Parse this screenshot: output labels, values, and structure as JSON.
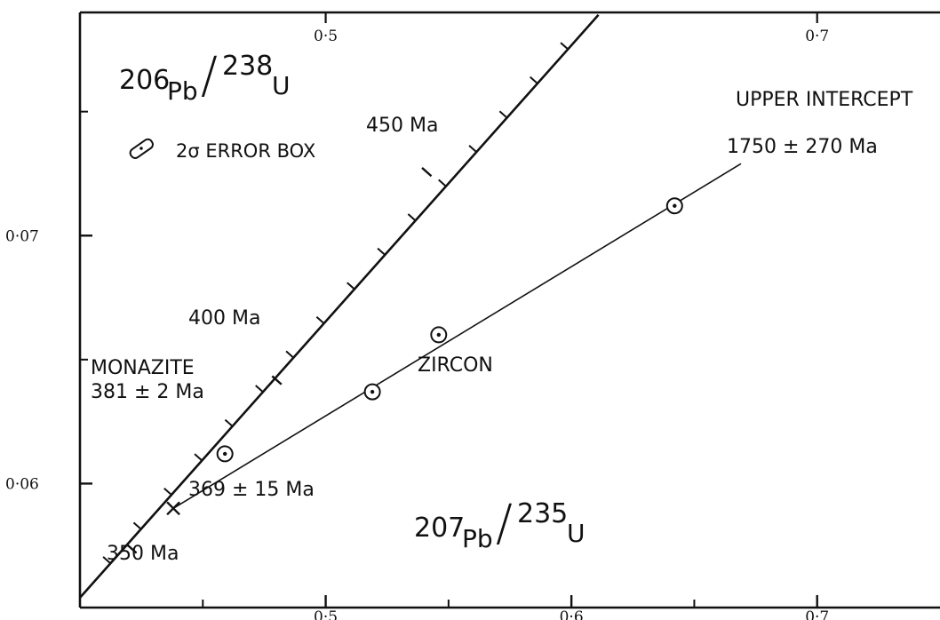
{
  "chart_data": {
    "type": "scatter",
    "xlim": [
      0.4,
      0.75
    ],
    "ylim": [
      0.055,
      0.079
    ],
    "x_ticks": [
      {
        "value": 0.5,
        "label": "0·5"
      },
      {
        "value": 0.6,
        "label": "0·6"
      },
      {
        "value": 0.7,
        "label": "0·7"
      }
    ],
    "x_top_ticks": [
      {
        "value": 0.5,
        "label": "0·5"
      },
      {
        "value": 0.7,
        "label": "0·7"
      }
    ],
    "y_ticks": [
      {
        "value": 0.06,
        "label": "0·06"
      },
      {
        "value": 0.07,
        "label": "0·07"
      }
    ],
    "x_label": {
      "mass": "207",
      "el1": "Pb",
      "sep": "/",
      "mass2": "235",
      "el2": "U"
    },
    "y_label": {
      "mass": "206",
      "el1": "Pb",
      "sep": "/",
      "mass2": "238",
      "el2": "U"
    },
    "legend": {
      "text": "2σ ERROR BOX"
    },
    "concordia": {
      "start": [
        0.4,
        0.0554
      ],
      "end": [
        0.611,
        0.0789
      ],
      "age_marks": [
        {
          "x": 0.423,
          "y": 0.0572,
          "label": "350 Ma"
        },
        {
          "x": 0.482,
          "y": 0.064,
          "label": "400 Ma"
        },
        {
          "x": 0.543,
          "y": 0.0724,
          "label": "450 Ma"
        }
      ]
    },
    "monazite": {
      "label": "MONAZITE",
      "age": "381 ± 2 Ma",
      "point": {
        "x": 0.459,
        "y": 0.0612
      }
    },
    "zircon": {
      "label": "ZIRCON",
      "points": [
        {
          "x": 0.519,
          "y": 0.0637
        },
        {
          "x": 0.546,
          "y": 0.066
        },
        {
          "x": 0.642,
          "y": 0.0712
        }
      ]
    },
    "discordia": {
      "start": [
        0.438,
        0.059
      ],
      "end": [
        0.669,
        0.0729
      ]
    },
    "lower_intercept": {
      "x": 0.438,
      "y": 0.059,
      "label": "369 ± 15 Ma"
    },
    "upper_intercept": {
      "label": "UPPER INTERCEPT",
      "age": "1750 ± 270 Ma"
    }
  }
}
